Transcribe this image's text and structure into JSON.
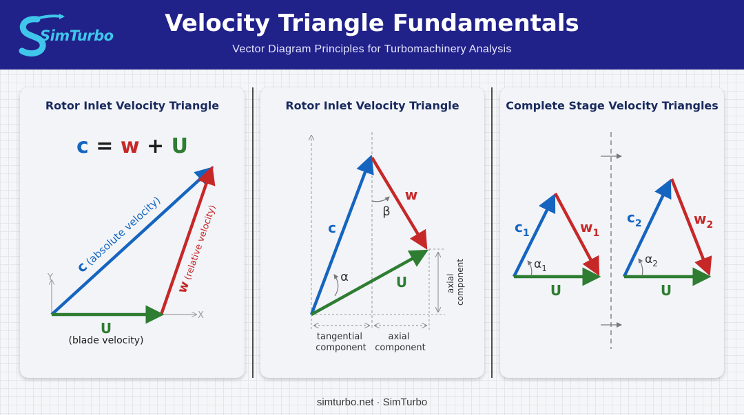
{
  "header": {
    "title": "Velocity Triangle Fundamentals",
    "subtitle": "Vector Diagram Principles for Turbomachinery Analysis",
    "logo_text": "SimTurbo"
  },
  "colors": {
    "absolute": "#1565c0",
    "relative": "#c62828",
    "blade": "#2e7d32",
    "header": "#21218a"
  },
  "panel1": {
    "title": "Rotor Inlet Velocity Triangle",
    "equation": {
      "c": "c",
      "eq": "=",
      "w": "w",
      "plus": "+",
      "u": "U"
    },
    "c_label": "c",
    "c_desc": "(absolute velocity)",
    "w_label": "w",
    "w_desc": "(relative velocity)",
    "u_label": "U",
    "u_desc": "(blade velocity)",
    "y_axis": "Y",
    "x_axis": "X"
  },
  "panel2": {
    "title": "Rotor Inlet Velocity Triangle",
    "c_label": "c",
    "w_label": "w",
    "u_label": "U",
    "alpha": "α",
    "beta": "β",
    "axial_vertical": [
      "axial",
      "component"
    ],
    "tangential": [
      "tangential",
      "component"
    ],
    "axial_horizontal": [
      "axial",
      "component"
    ]
  },
  "panel3": {
    "title": "Complete Stage Velocity Triangles",
    "triangles": [
      {
        "c": "c",
        "c_sub": "1",
        "w": "w",
        "w_sub": "1",
        "alpha": "α",
        "alpha_sub": "1",
        "u": "U"
      },
      {
        "c": "c",
        "c_sub": "2",
        "w": "w",
        "w_sub": "2",
        "alpha": "α",
        "alpha_sub": "2",
        "u": "U"
      }
    ]
  },
  "footer": "simturbo.net · SimTurbo"
}
